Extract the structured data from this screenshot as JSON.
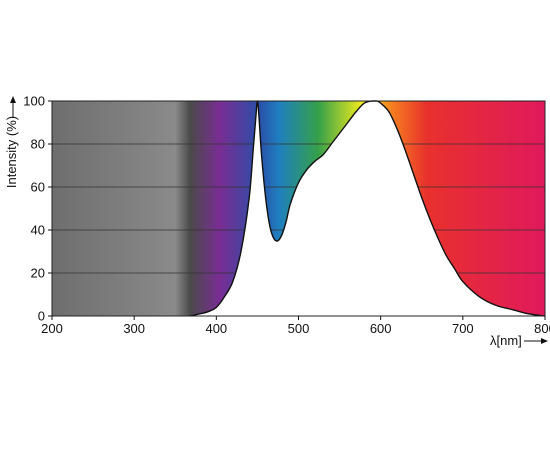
{
  "chart_data": {
    "type": "area",
    "title": "",
    "xlabel": "λ[nm]",
    "ylabel": "Intensity (%)",
    "xlim": [
      200,
      800
    ],
    "ylim": [
      0,
      100
    ],
    "x_ticks": [
      "200",
      "300",
      "400",
      "500",
      "600",
      "700",
      "800"
    ],
    "y_ticks": [
      "0",
      "20",
      "40",
      "60",
      "80",
      "100"
    ],
    "grid": "horizontal",
    "legend": "none",
    "background": "visible spectrum gradient (UV grey to violet, blue, cyan, green, yellow, orange, red) revealed above the curve",
    "series": [
      {
        "x": [
          368,
          380,
          390,
          400,
          410,
          420,
          430,
          440,
          445,
          448,
          450,
          452,
          455,
          460,
          465,
          470,
          475,
          480,
          485,
          490,
          500,
          510,
          520,
          530,
          540,
          550,
          560,
          570,
          580,
          590,
          595,
          600,
          610,
          620,
          630,
          640,
          650,
          660,
          670,
          680,
          690,
          700,
          720,
          740,
          760,
          780,
          800
        ],
        "values": [
          0,
          1,
          2,
          4,
          9,
          16,
          30,
          55,
          78,
          92,
          100,
          92,
          75,
          55,
          42,
          36,
          35,
          38,
          44,
          52,
          62,
          68,
          72,
          75,
          80,
          85,
          90,
          95,
          99,
          100,
          100,
          99,
          95,
          87,
          77,
          66,
          55,
          45,
          36,
          28,
          22,
          16,
          9,
          5,
          3,
          1,
          0
        ]
      }
    ],
    "colors": {
      "curve": "#111111",
      "fill": "#ffffff",
      "grid": "#333333",
      "uv": "#7d7d7d",
      "violet": "#7a2d93",
      "blue": "#2a4fa8",
      "green": "#35a04a",
      "yellow": "#f3ec1d",
      "orange": "#f57e20",
      "red": "#e8312d",
      "deep_red": "#e0195c"
    }
  }
}
